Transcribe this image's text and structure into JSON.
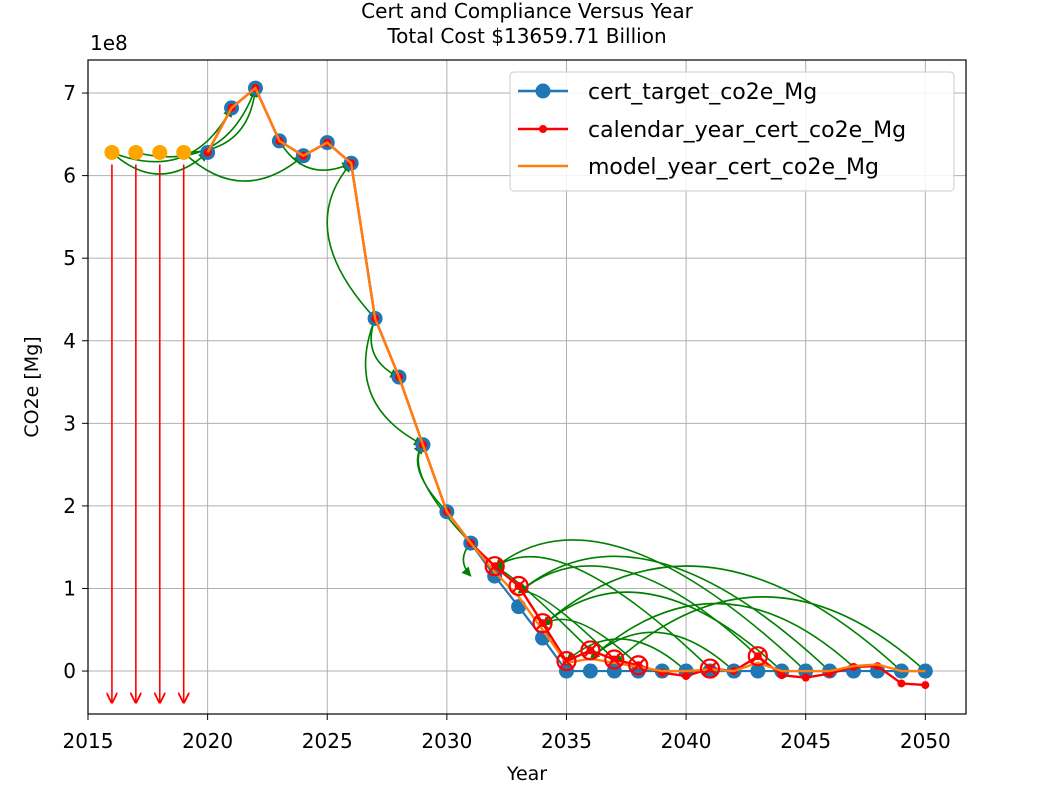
{
  "chart_data": {
    "type": "line",
    "title": "Cert and Compliance Versus Year",
    "subtitle": "Total Cost $13659.71 Billion",
    "xlabel": "Year",
    "ylabel": "CO2e [Mg]",
    "y_scale_label": "1e8",
    "xlim": [
      2015,
      2051.7
    ],
    "ylim": [
      -0.52,
      7.4
    ],
    "x_ticks": [
      2015,
      2020,
      2025,
      2030,
      2035,
      2040,
      2045,
      2050
    ],
    "y_ticks": [
      0,
      1,
      2,
      3,
      4,
      5,
      6,
      7
    ],
    "grid": true,
    "legend_position": "top-right",
    "series": [
      {
        "name": "cert_target_co2e_Mg",
        "color": "#1f77b4",
        "marker": "circle",
        "x": [
          2020,
          2021,
          2022,
          2023,
          2024,
          2025,
          2026,
          2027,
          2028,
          2029,
          2030,
          2031,
          2032,
          2033,
          2034,
          2035,
          2036,
          2037,
          2038,
          2039,
          2040,
          2041,
          2042,
          2043,
          2044,
          2045,
          2046,
          2047,
          2048,
          2049,
          2050
        ],
        "y": [
          6.28,
          6.82,
          7.06,
          6.42,
          6.24,
          6.4,
          6.15,
          4.27,
          3.56,
          2.74,
          1.93,
          1.55,
          1.15,
          0.78,
          0.4,
          0.0,
          0.0,
          0.0,
          0.0,
          0.0,
          0.0,
          0.0,
          0.0,
          0.0,
          0.0,
          0.0,
          0.0,
          0.0,
          0.0,
          0.0,
          0.0
        ]
      },
      {
        "name": "calendar_year_cert_co2e_Mg",
        "color": "#ff0000",
        "marker": "dot",
        "x": [
          2020,
          2021,
          2022,
          2023,
          2024,
          2025,
          2026,
          2027,
          2028,
          2029,
          2030,
          2031,
          2032,
          2033,
          2034,
          2035,
          2036,
          2037,
          2038,
          2039,
          2040,
          2041,
          2042,
          2043,
          2044,
          2045,
          2046,
          2047,
          2048,
          2049,
          2050
        ],
        "y": [
          6.28,
          6.82,
          7.06,
          6.42,
          6.24,
          6.4,
          6.15,
          4.27,
          3.56,
          2.74,
          1.93,
          1.55,
          1.27,
          1.03,
          0.58,
          0.12,
          0.25,
          0.14,
          0.07,
          -0.02,
          -0.06,
          0.03,
          0.0,
          0.18,
          -0.05,
          -0.08,
          -0.03,
          0.05,
          0.06,
          -0.15,
          -0.17
        ]
      },
      {
        "name": "model_year_cert_co2e_Mg",
        "color": "#ff7f0e",
        "marker": "none",
        "x": [
          2020,
          2021,
          2022,
          2023,
          2024,
          2025,
          2026,
          2027,
          2028,
          2029,
          2030,
          2031,
          2032,
          2033,
          2034,
          2035,
          2036,
          2037,
          2038,
          2039,
          2040,
          2041,
          2042,
          2043,
          2044,
          2045,
          2046,
          2047,
          2048,
          2049,
          2050
        ],
        "y": [
          6.28,
          6.82,
          7.06,
          6.42,
          6.24,
          6.4,
          6.15,
          4.27,
          3.56,
          2.74,
          1.93,
          1.55,
          1.2,
          0.9,
          0.5,
          0.1,
          0.15,
          0.1,
          0.05,
          0.0,
          0.0,
          0.02,
          0.0,
          0.1,
          0.0,
          0.0,
          0.0,
          0.06,
          0.08,
          0.0,
          0.0
        ]
      }
    ],
    "initial_credits": {
      "color": "#ffa500",
      "x": [
        2016,
        2017,
        2018,
        2019
      ],
      "y": [
        6.28,
        6.28,
        6.28,
        6.28
      ]
    },
    "expired_credits": {
      "color": "#ff0000",
      "x": [
        2016,
        2017,
        2018,
        2019
      ],
      "y_from": 6.28,
      "y_to": -0.38
    },
    "credit_transfers": {
      "color": "#008000",
      "transfers": [
        {
          "from": [
            2016,
            6.28
          ],
          "to": [
            2020,
            6.28
          ]
        },
        {
          "from": [
            2016,
            6.28
          ],
          "to": [
            2021,
            6.82
          ]
        },
        {
          "from": [
            2017,
            6.28
          ],
          "to": [
            2022,
            7.06
          ]
        },
        {
          "from": [
            2019,
            6.28
          ],
          "to": [
            2022,
            7.06
          ]
        },
        {
          "from": [
            2019,
            6.28
          ],
          "to": [
            2024,
            6.24
          ]
        },
        {
          "from": [
            2023,
            6.42
          ],
          "to": [
            2026,
            6.15
          ]
        },
        {
          "from": [
            2027,
            4.27
          ],
          "to": [
            2026,
            6.15
          ]
        },
        {
          "from": [
            2027,
            4.27
          ],
          "to": [
            2028,
            3.56
          ]
        },
        {
          "from": [
            2027,
            4.27
          ],
          "to": [
            2029,
            2.74
          ]
        },
        {
          "from": [
            2031,
            1.55
          ],
          "to": [
            2029,
            2.74
          ]
        },
        {
          "from": [
            2030,
            1.93
          ],
          "to": [
            2029,
            2.74
          ]
        },
        {
          "from": [
            2031,
            1.55
          ],
          "to": [
            2031,
            1.15
          ]
        },
        {
          "from": [
            2036,
            0.25
          ],
          "to": [
            2032,
            1.25
          ]
        },
        {
          "from": [
            2041,
            0.03
          ],
          "to": [
            2032,
            1.25
          ]
        },
        {
          "from": [
            2045,
            0.0
          ],
          "to": [
            2032,
            1.25
          ]
        },
        {
          "from": [
            2037,
            0.14
          ],
          "to": [
            2033,
            0.95
          ]
        },
        {
          "from": [
            2043,
            0.18
          ],
          "to": [
            2033,
            0.95
          ]
        },
        {
          "from": [
            2046,
            0.0
          ],
          "to": [
            2033,
            0.95
          ]
        },
        {
          "from": [
            2038,
            0.07
          ],
          "to": [
            2034,
            0.55
          ]
        },
        {
          "from": [
            2044,
            0.0
          ],
          "to": [
            2034,
            0.55
          ]
        },
        {
          "from": [
            2049,
            0.0
          ],
          "to": [
            2034,
            0.55
          ]
        },
        {
          "from": [
            2040,
            0.0
          ],
          "to": [
            2035,
            0.12
          ]
        },
        {
          "from": [
            2042,
            0.0
          ],
          "to": [
            2036,
            0.15
          ]
        },
        {
          "from": [
            2047,
            0.05
          ],
          "to": [
            2036,
            0.15
          ]
        },
        {
          "from": [
            2050,
            0.0
          ],
          "to": [
            2037,
            0.1
          ]
        }
      ]
    },
    "marked_years": {
      "color": "#ff0000",
      "symbol": "circle-x",
      "x": [
        2032,
        2033,
        2034,
        2035,
        2036,
        2037,
        2038,
        2041,
        2043
      ],
      "y": [
        1.27,
        1.03,
        0.58,
        0.12,
        0.25,
        0.14,
        0.07,
        0.03,
        0.18
      ]
    }
  }
}
